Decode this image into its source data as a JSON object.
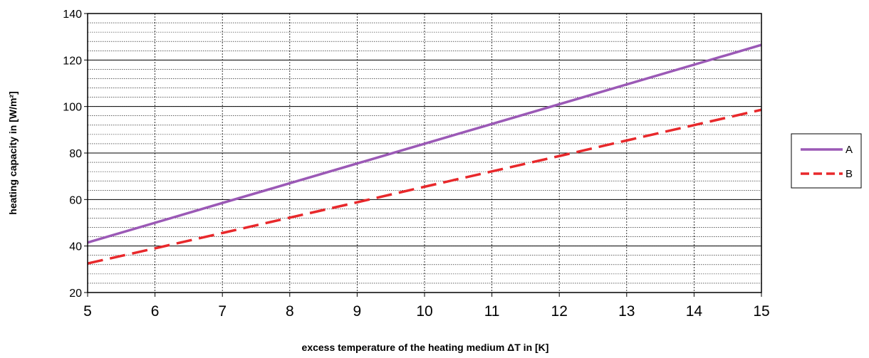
{
  "chart_data": {
    "type": "line",
    "xlabel": "excess temperature of the heating medium ΔT in [K]",
    "ylabel": "heating capacity in [W/m²]",
    "xlim": [
      5,
      15
    ],
    "ylim": [
      20,
      140
    ],
    "x_ticks": [
      5,
      6,
      7,
      8,
      9,
      10,
      11,
      12,
      13,
      14,
      15
    ],
    "y_ticks": [
      20,
      40,
      60,
      80,
      100,
      120,
      140
    ],
    "grid": true,
    "legend_position": "right",
    "x": [
      5,
      6,
      7,
      8,
      9,
      10,
      11,
      12,
      13,
      14,
      15
    ],
    "series": [
      {
        "name": "A",
        "color": "#9b59b6",
        "style": "solid",
        "values": [
          41.5,
          50,
          58.5,
          67,
          75.5,
          84,
          92.5,
          101,
          109.5,
          118,
          126.5
        ]
      },
      {
        "name": "B",
        "color": "#e8282b",
        "style": "dashed",
        "values": [
          32.5,
          39,
          45.6,
          52.2,
          58.8,
          65.5,
          72.1,
          78.7,
          85.4,
          92,
          98.6
        ]
      }
    ]
  }
}
